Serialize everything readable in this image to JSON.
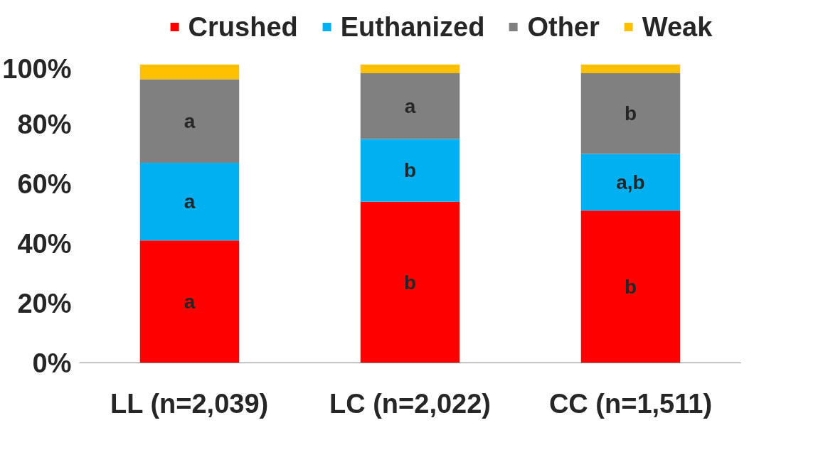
{
  "chart_data": {
    "type": "bar",
    "stacked": true,
    "categories": [
      "LL (n=2,039)",
      "LC (n=2,022)",
      "CC (n=1,511)"
    ],
    "series": [
      {
        "name": "Crushed",
        "color": "#ff0000",
        "values": [
          41,
          54,
          51
        ],
        "value_labels": [
          "a",
          "b",
          "b"
        ]
      },
      {
        "name": "Euthanized",
        "color": "#00b0f0",
        "values": [
          26,
          21,
          19
        ],
        "value_labels": [
          "a",
          "b",
          "a,b"
        ]
      },
      {
        "name": "Other",
        "color": "#808080",
        "values": [
          28,
          22,
          27
        ],
        "value_labels": [
          "a",
          "a",
          "b"
        ]
      },
      {
        "name": "Weak",
        "color": "#ffc000",
        "values": [
          5,
          3,
          3
        ]
      }
    ],
    "ylim": [
      0,
      100
    ],
    "yticks": [
      {
        "value": 0,
        "label": "0%"
      },
      {
        "value": 20,
        "label": "20%"
      },
      {
        "value": 40,
        "label": "40%"
      },
      {
        "value": 60,
        "label": "60%"
      },
      {
        "value": 80,
        "label": "80%"
      },
      {
        "value": 100,
        "label": "100%"
      }
    ],
    "grid": false,
    "legend": "top"
  }
}
